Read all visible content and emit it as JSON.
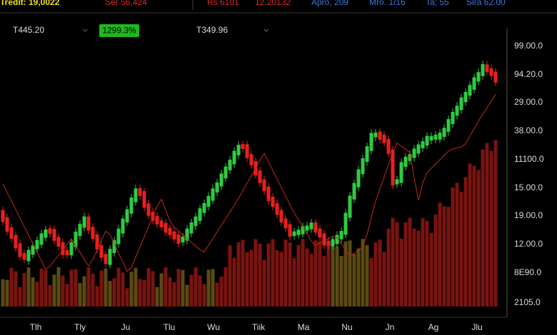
{
  "header": {
    "items": [
      "Tredit: 19,0022",
      "Ser 56,424",
      "Rs 6101",
      "12.20132",
      "Apro, 209",
      "Mro. 1/16",
      "Ta; 55",
      "Sira 62.00"
    ]
  },
  "quote_row": {
    "left_price": "T445.20",
    "change_badge": "1299.3%",
    "right_price": "T349.96"
  },
  "price_axis": {
    "labels": [
      "99.00.0",
      "94.20.0",
      "29.00.0",
      "38.00.0",
      "11100.0",
      "15.00.0",
      "19.00.0",
      "12.00.0",
      "8E90.0",
      "2105.0"
    ]
  },
  "time_axis": {
    "labels": [
      "Tlh",
      "Tly",
      "Ju",
      "Tlu",
      "Wu",
      "Tiik",
      "Ma",
      "Nu",
      "Jn",
      "Ag",
      "Jlu"
    ]
  }
}
